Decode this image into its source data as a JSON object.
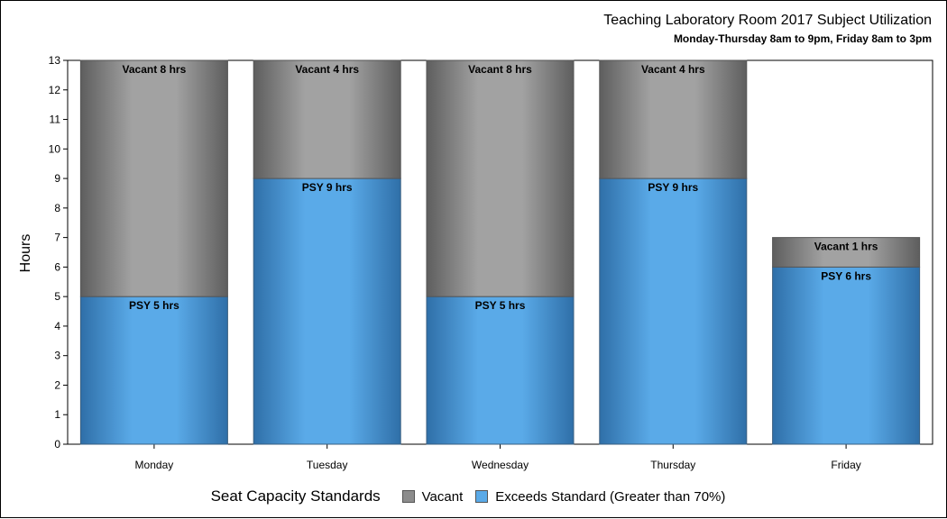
{
  "chart_data": {
    "type": "bar",
    "stacked": true,
    "title": "Teaching Laboratory Room 2017 Subject Utilization",
    "subtitle": "Monday-Thursday 8am to 9pm, Friday 8am to 3pm",
    "xlabel": "",
    "ylabel": "Hours",
    "ylim": [
      0,
      13
    ],
    "yticks": [
      0,
      1,
      2,
      3,
      4,
      5,
      6,
      7,
      8,
      9,
      10,
      11,
      12,
      13
    ],
    "categories": [
      "Monday",
      "Tuesday",
      "Wednesday",
      "Thursday",
      "Friday"
    ],
    "series": [
      {
        "name": "Exceeds Standard (Greater than 70%)",
        "key": "psy",
        "color": "#5aaae8",
        "values": [
          5,
          9,
          5,
          9,
          6
        ],
        "labels": [
          "PSY 5 hrs",
          "PSY 9 hrs",
          "PSY 5 hrs",
          "PSY 9 hrs",
          "PSY 6 hrs"
        ]
      },
      {
        "name": "Vacant",
        "key": "vacant",
        "color": "#9e9e9e",
        "values": [
          8,
          4,
          8,
          4,
          1
        ],
        "labels": [
          "Vacant 8 hrs",
          "Vacant 4 hrs",
          "Vacant 8 hrs",
          "Vacant 4 hrs",
          "Vacant 1 hrs"
        ]
      }
    ],
    "legend": {
      "title": "Seat Capacity Standards",
      "placement": "bottom",
      "entries": [
        "Vacant",
        "Exceeds Standard (Greater than 70%)"
      ]
    },
    "grid": false
  }
}
